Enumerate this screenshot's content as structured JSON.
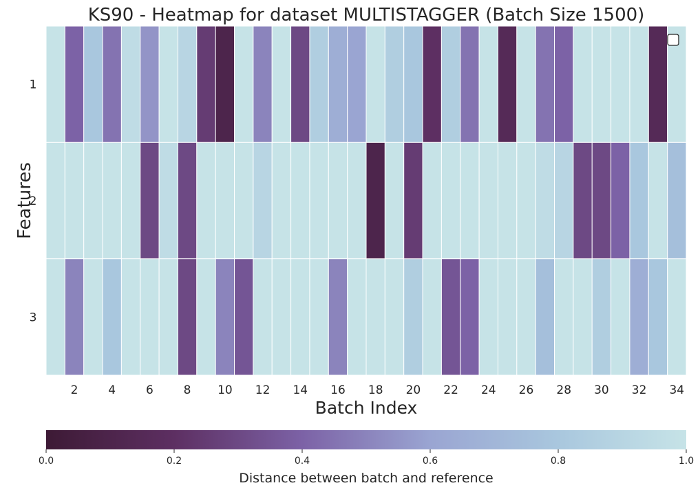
{
  "chart_data": {
    "type": "heatmap",
    "title": "KS90 - Heatmap for dataset MULTISTAGGER (Batch Size 1500)",
    "xlabel": "Batch Index",
    "ylabel": "Features",
    "x_ticks": [
      "2",
      "4",
      "6",
      "8",
      "10",
      "12",
      "14",
      "16",
      "18",
      "20",
      "22",
      "24",
      "26",
      "28",
      "30",
      "32",
      "34"
    ],
    "rows": [
      "1",
      "2",
      "3"
    ],
    "columns": [
      1,
      2,
      3,
      4,
      5,
      6,
      7,
      8,
      9,
      10,
      11,
      12,
      13,
      14,
      15,
      16,
      17,
      18,
      19,
      20,
      21,
      22,
      23,
      24,
      25,
      26,
      27,
      28,
      29,
      30,
      31,
      32,
      33,
      34
    ],
    "values": [
      [
        1.0,
        0.4,
        0.8,
        0.45,
        0.95,
        0.55,
        1.0,
        0.9,
        0.25,
        0.1,
        1.0,
        0.5,
        1.0,
        0.3,
        0.85,
        0.65,
        0.6,
        1.0,
        0.85,
        0.8,
        0.2,
        0.85,
        0.45,
        1.0,
        0.15,
        1.0,
        0.45,
        0.4,
        1.0,
        1.0,
        1.0,
        1.0,
        0.15,
        1.0
      ],
      [
        1.0,
        1.0,
        1.0,
        1.0,
        1.0,
        0.3,
        0.95,
        0.3,
        1.0,
        1.0,
        1.0,
        0.9,
        1.0,
        1.0,
        1.0,
        1.0,
        1.0,
        0.1,
        1.0,
        0.25,
        1.0,
        1.0,
        1.0,
        1.0,
        1.0,
        1.0,
        0.95,
        0.9,
        0.3,
        0.3,
        0.4,
        0.8,
        1.0,
        0.75
      ],
      [
        1.0,
        0.5,
        1.0,
        0.8,
        1.0,
        1.0,
        1.0,
        0.3,
        1.0,
        0.5,
        0.35,
        1.0,
        1.0,
        1.0,
        1.0,
        0.5,
        1.0,
        1.0,
        1.0,
        0.85,
        1.0,
        0.35,
        0.4,
        1.0,
        1.0,
        1.0,
        0.75,
        1.0,
        1.0,
        0.85,
        1.0,
        0.65,
        0.8,
        1.0
      ]
    ],
    "colorbar": {
      "label": "Distance between batch and reference",
      "min": 0.0,
      "max": 1.0,
      "ticks": [
        "0.0",
        "0.2",
        "0.4",
        "0.6",
        "0.8",
        "1.0"
      ]
    },
    "colormap": [
      "#3d1a35",
      "#5d2f62",
      "#7c62a6",
      "#9aa5d2",
      "#a9c7de",
      "#c6e3e7"
    ],
    "legend": {
      "placement": "top-right",
      "entries": []
    },
    "grid": false
  }
}
